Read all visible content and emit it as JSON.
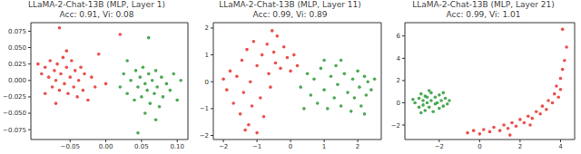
{
  "chart_data": [
    {
      "type": "scatter",
      "title": "LLaMA-2-Chat-13B (MLP, Layer 1)",
      "subtitle": "Acc: 0.91, Vi: 0.08",
      "grid": false,
      "xlim": [
        -0.105,
        0.115
      ],
      "ylim": [
        -0.09,
        0.088
      ],
      "xticks": [
        {
          "value": -0.05,
          "label": "−0.05"
        },
        {
          "value": 0,
          "label": "0.00"
        },
        0.05,
        {
          "value": 0.1,
          "label": "0.10"
        }
      ],
      "yticks": [
        {
          "value": -0.075,
          "label": "−0.075"
        },
        {
          "value": -0.05,
          "label": "−0.050"
        },
        {
          "value": -0.025,
          "label": "−0.025"
        },
        {
          "value": 0,
          "label": "0.000"
        },
        0.025,
        {
          "value": 0.05,
          "label": "0.050"
        },
        0.075
      ],
      "series": [
        {
          "color": "#e8312b",
          "marker": "circle",
          "x": [
            -0.095,
            -0.09,
            -0.085,
            -0.08,
            -0.078,
            -0.075,
            -0.072,
            -0.07,
            -0.068,
            -0.065,
            -0.063,
            -0.06,
            -0.058,
            -0.055,
            -0.053,
            -0.05,
            -0.048,
            -0.045,
            -0.043,
            -0.04,
            -0.038,
            -0.035,
            -0.032,
            -0.03,
            -0.025,
            -0.02,
            -0.015,
            -0.01,
            0.0,
            -0.07,
            -0.055,
            -0.085,
            0.02,
            -0.065
          ],
          "y": [
            0.025,
            0.01,
            0.02,
            0.005,
            0.03,
            -0.01,
            0.015,
            0.0,
            0.025,
            -0.015,
            0.01,
            0.035,
            -0.005,
            0.02,
            -0.02,
            0.005,
            0.03,
            -0.01,
            0.015,
            -0.025,
            0.0,
            0.02,
            -0.015,
            0.01,
            -0.03,
            0.005,
            -0.01,
            0.04,
            -0.005,
            -0.035,
            0.045,
            -0.02,
            0.07,
            0.08
          ]
        },
        {
          "color": "#2e9a35",
          "marker": "circle",
          "x": [
            0.02,
            0.025,
            0.03,
            0.035,
            0.04,
            0.042,
            0.045,
            0.048,
            0.05,
            0.052,
            0.055,
            0.058,
            0.06,
            0.062,
            0.065,
            0.068,
            0.07,
            0.072,
            0.075,
            0.078,
            0.08,
            0.085,
            0.09,
            0.095,
            0.1,
            0.055,
            0.045,
            0.06,
            0.03,
            0.07,
            0.105
          ],
          "y": [
            -0.01,
            0.01,
            -0.02,
            0.0,
            -0.03,
            0.015,
            -0.01,
            0.005,
            -0.025,
            0.02,
            -0.005,
            -0.015,
            0.01,
            -0.035,
            0.0,
            -0.02,
            0.015,
            -0.01,
            -0.04,
            0.005,
            -0.025,
            -0.005,
            -0.015,
            0.01,
            -0.03,
            -0.05,
            -0.08,
            0.065,
            0.03,
            -0.06,
            0.0
          ]
        }
      ]
    },
    {
      "type": "scatter",
      "title": "LLaMA-2-Chat-13B (MLP, Layer 11)",
      "subtitle": "Acc: 0.99, Vi: 0.89",
      "grid": false,
      "xlim": [
        -2.3,
        2.7
      ],
      "ylim": [
        -2.15,
        2.2
      ],
      "xticks": [
        {
          "value": -2,
          "label": "−2"
        },
        {
          "value": -1,
          "label": "−1"
        },
        0,
        1,
        2
      ],
      "yticks": [
        {
          "value": -2,
          "label": "−2"
        },
        {
          "value": -1,
          "label": "−1"
        },
        0,
        1,
        2
      ],
      "series": [
        {
          "color": "#e8312b",
          "marker": "circle",
          "x": [
            -2.0,
            -1.9,
            -1.8,
            -1.7,
            -1.6,
            -1.5,
            -1.45,
            -1.4,
            -1.3,
            -1.25,
            -1.2,
            -1.15,
            -1.1,
            -1.0,
            -1.0,
            -0.9,
            -0.85,
            -0.8,
            -0.7,
            -0.65,
            -0.6,
            -0.5,
            -0.45,
            -0.4,
            -0.3,
            -0.2,
            -0.1,
            0.0,
            0.1,
            0.2,
            -0.55,
            -1.35
          ],
          "y": [
            0.1,
            -0.3,
            0.4,
            -0.8,
            0.2,
            -1.2,
            0.8,
            -0.4,
            1.2,
            -1.6,
            0.0,
            -0.9,
            1.5,
            -1.9,
            0.6,
            -0.6,
            1.0,
            -1.3,
            1.4,
            0.3,
            -0.2,
            1.1,
            0.7,
            1.7,
            0.5,
            1.3,
            0.9,
            0.4,
            1.0,
            0.6,
            1.9,
            -1.8
          ]
        },
        {
          "color": "#2e9a35",
          "marker": "circle",
          "x": [
            0.3,
            0.5,
            0.6,
            0.7,
            0.8,
            0.9,
            1.0,
            1.1,
            1.2,
            1.3,
            1.35,
            1.4,
            1.5,
            1.6,
            1.7,
            1.8,
            1.85,
            1.9,
            2.0,
            2.05,
            2.1,
            2.2,
            2.25,
            2.3,
            2.4,
            2.5,
            1.0,
            1.5,
            0.4,
            2.2
          ],
          "y": [
            -0.2,
            0.3,
            -0.5,
            0.1,
            -0.8,
            0.5,
            -0.3,
            -1.0,
            0.2,
            -0.6,
            0.6,
            -0.1,
            -0.9,
            0.3,
            -0.4,
            -1.1,
            0.1,
            -0.6,
            0.4,
            -0.2,
            -0.9,
            0.2,
            -0.5,
            0.0,
            -0.3,
            0.1,
            0.8,
            0.8,
            -1.0,
            -1.2
          ]
        }
      ]
    },
    {
      "type": "scatter",
      "title": "LLaMA-2-Chat-13B (MLP, Layer 21)",
      "subtitle": "Acc: 0.99, Vi: 1.01",
      "grid": false,
      "xlim": [
        -3.7,
        4.7
      ],
      "ylim": [
        -3.3,
        7.2
      ],
      "xticks": [
        {
          "value": -2,
          "label": "−2"
        },
        0,
        2,
        4
      ],
      "yticks": [
        {
          "value": -2,
          "label": "−2"
        },
        0,
        2,
        4,
        6
      ],
      "series": [
        {
          "color": "#2e9a35",
          "marker": "circle",
          "x": [
            -3.2,
            -3.0,
            -3.0,
            -2.9,
            -2.8,
            -2.8,
            -2.7,
            -2.6,
            -2.6,
            -2.5,
            -2.4,
            -2.4,
            -2.3,
            -2.2,
            -2.2,
            -2.1,
            -2.0,
            -2.0,
            -1.9,
            -1.8,
            -1.7,
            -1.6,
            -1.5,
            -2.9,
            -2.5,
            -3.3,
            -1.8,
            -2.7
          ],
          "y": [
            0.0,
            0.4,
            -0.4,
            0.8,
            -0.2,
            0.2,
            -0.7,
            0.5,
            0.0,
            -0.4,
            0.9,
            0.2,
            -0.8,
            -0.1,
            0.5,
            0.0,
            -0.5,
            0.7,
            0.2,
            -0.3,
            0.4,
            -0.1,
            0.2,
            -0.9,
            1.1,
            0.3,
            0.9,
            0.6
          ]
        },
        {
          "color": "#e8312b",
          "marker": "circle",
          "x": [
            -0.6,
            -0.3,
            0.0,
            0.2,
            0.5,
            0.7,
            1.0,
            1.2,
            1.4,
            1.6,
            1.8,
            2.0,
            2.2,
            2.4,
            2.6,
            2.8,
            3.0,
            3.1,
            3.3,
            3.4,
            3.6,
            3.7,
            3.8,
            3.9,
            4.0,
            4.1,
            4.0,
            4.2,
            4.3,
            4.1,
            1.5,
            2.5
          ],
          "y": [
            -2.7,
            -2.5,
            -2.8,
            -2.4,
            -2.6,
            -2.2,
            -2.5,
            -2.0,
            -2.3,
            -1.8,
            -2.1,
            -1.5,
            -1.8,
            -1.2,
            -1.4,
            -0.8,
            -1.0,
            -0.3,
            -0.6,
            0.2,
            0.0,
            0.8,
            1.5,
            0.5,
            2.2,
            3.0,
            1.2,
            3.8,
            5.0,
            6.6,
            -2.9,
            -2.0
          ]
        }
      ]
    }
  ]
}
